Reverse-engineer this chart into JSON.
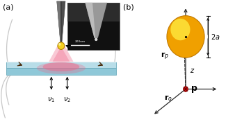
{
  "panel_a_label": "(a)",
  "panel_b_label": "(b)",
  "bg_color": "#ffffff",
  "plate_color_top": "#b8dde8",
  "plate_color_body": "#8fc8d8",
  "plate_edge_color": "#6aaabb",
  "tip_dark": "#383838",
  "tip_mid": "#707070",
  "tip_light": "#b0b0b0",
  "sphere_orange": "#f0a000",
  "sphere_yellow": "#ffee44",
  "glow_pink": "#ee6688",
  "nano_sphere": "#f5d020",
  "inset_bg": "#111111",
  "inset_tip_light": "#c0c0c0",
  "inset_tip_mid": "#888888",
  "beam_color": "#c8c8c8",
  "dipole_red": "#cc1111",
  "axis_dark": "#2a2a2a",
  "rp_arrow": "#333333",
  "bracket_color": "#111111"
}
